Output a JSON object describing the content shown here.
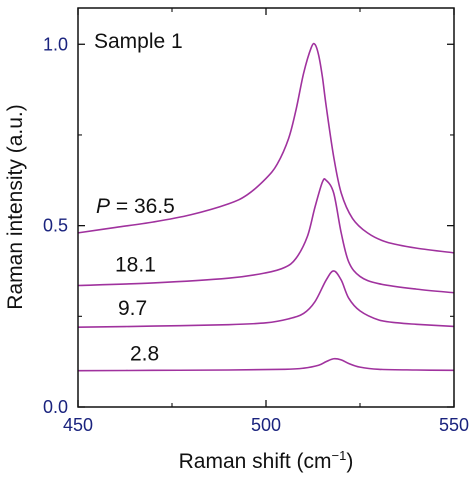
{
  "chart_data": {
    "type": "line",
    "title": "",
    "xlabel": "Raman shift (cm",
    "xlabel_superscript": "−1",
    "xlabel_suffix": ")",
    "ylabel": "Raman intensity (a.u.)",
    "xlim": [
      450,
      550
    ],
    "ylim": [
      0,
      1.1
    ],
    "x_ticks": [
      450,
      500,
      550
    ],
    "y_ticks": [
      0.0,
      0.5,
      1.0
    ],
    "x_tick_labels": [
      "450",
      "500",
      "550"
    ],
    "y_tick_labels": [
      "0.0",
      "0.5",
      "1.0"
    ],
    "grid": false,
    "legend": "none",
    "sample_label": "Sample 1",
    "line_color": "#a0329e",
    "tick_color": "#1a237e",
    "series": [
      {
        "label": "2.8",
        "label_prefix": "",
        "x": [
          450,
          470,
          490,
          505,
          510,
          514,
          516,
          518,
          520,
          522,
          525,
          530,
          540,
          550
        ],
        "y": [
          0.1,
          0.101,
          0.102,
          0.104,
          0.107,
          0.115,
          0.125,
          0.133,
          0.13,
          0.12,
          0.11,
          0.104,
          0.102,
          0.101
        ]
      },
      {
        "label": "9.7",
        "label_prefix": "",
        "x": [
          450,
          470,
          490,
          500,
          506,
          510,
          513,
          516,
          518,
          520,
          522,
          525,
          530,
          535,
          540,
          550
        ],
        "y": [
          0.22,
          0.223,
          0.227,
          0.232,
          0.243,
          0.258,
          0.29,
          0.35,
          0.375,
          0.35,
          0.3,
          0.265,
          0.24,
          0.232,
          0.228,
          0.222
        ]
      },
      {
        "label": "18.1",
        "label_prefix": "",
        "x": [
          450,
          470,
          490,
          500,
          505,
          508,
          511,
          513,
          515,
          516,
          518,
          520,
          522,
          525,
          530,
          540,
          550
        ],
        "y": [
          0.335,
          0.342,
          0.355,
          0.37,
          0.385,
          0.41,
          0.47,
          0.55,
          0.62,
          0.625,
          0.59,
          0.48,
          0.4,
          0.36,
          0.34,
          0.325,
          0.315
        ]
      },
      {
        "label": "36.5",
        "label_prefix": "P = ",
        "x": [
          450,
          460,
          470,
          480,
          490,
          495,
          500,
          503,
          506,
          508,
          510,
          512,
          513,
          514,
          515,
          516,
          518,
          520,
          523,
          527,
          532,
          540,
          550
        ],
        "y": [
          0.48,
          0.495,
          0.51,
          0.53,
          0.56,
          0.585,
          0.63,
          0.67,
          0.74,
          0.82,
          0.92,
          0.99,
          1.0,
          0.97,
          0.91,
          0.83,
          0.69,
          0.59,
          0.52,
          0.48,
          0.455,
          0.438,
          0.425
        ]
      }
    ]
  }
}
